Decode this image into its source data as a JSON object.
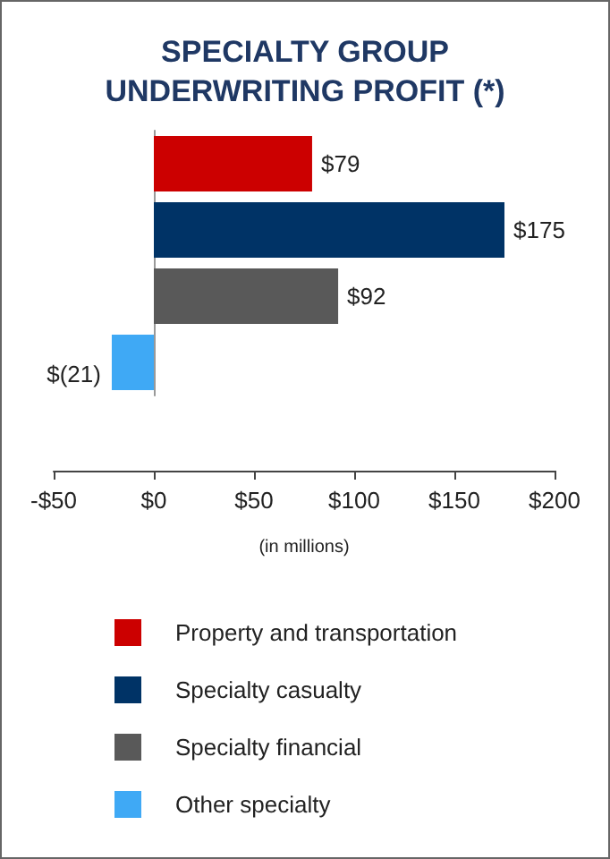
{
  "chart_data": {
    "type": "bar",
    "orientation": "horizontal",
    "stacked": true,
    "title": "SPECIALTY GROUP\nUNDERWRITING PROFIT (*)",
    "xlabel": "(in millions)",
    "categories": [
      null,
      null,
      null,
      null
    ],
    "series": [
      {
        "name": "Property and transportation",
        "color": "#cc0000",
        "values": [
          79,
          null,
          null,
          null
        ],
        "value_labels": [
          "$79",
          null,
          null,
          null
        ]
      },
      {
        "name": "Specialty casualty",
        "color": "#003366",
        "values": [
          null,
          175,
          null,
          null
        ],
        "value_labels": [
          null,
          "$175",
          null,
          null
        ]
      },
      {
        "name": "Specialty financial",
        "color": "#595959",
        "values": [
          null,
          null,
          92,
          null
        ],
        "value_labels": [
          null,
          null,
          "$92",
          null
        ]
      },
      {
        "name": "Other specialty",
        "color": "#3fa9f5",
        "values": [
          null,
          null,
          null,
          -21
        ],
        "value_labels": [
          null,
          null,
          null,
          "$(21)"
        ]
      }
    ],
    "xlim": [
      -50,
      200
    ],
    "xticks": [
      {
        "value": -50,
        "label": "-$50"
      },
      {
        "value": 0,
        "label": "$0"
      },
      {
        "value": 50,
        "label": "$50"
      },
      {
        "value": 100,
        "label": "$100"
      },
      {
        "value": 150,
        "label": "$150"
      },
      {
        "value": 200,
        "label": "$200"
      }
    ],
    "legend": "bottom"
  }
}
